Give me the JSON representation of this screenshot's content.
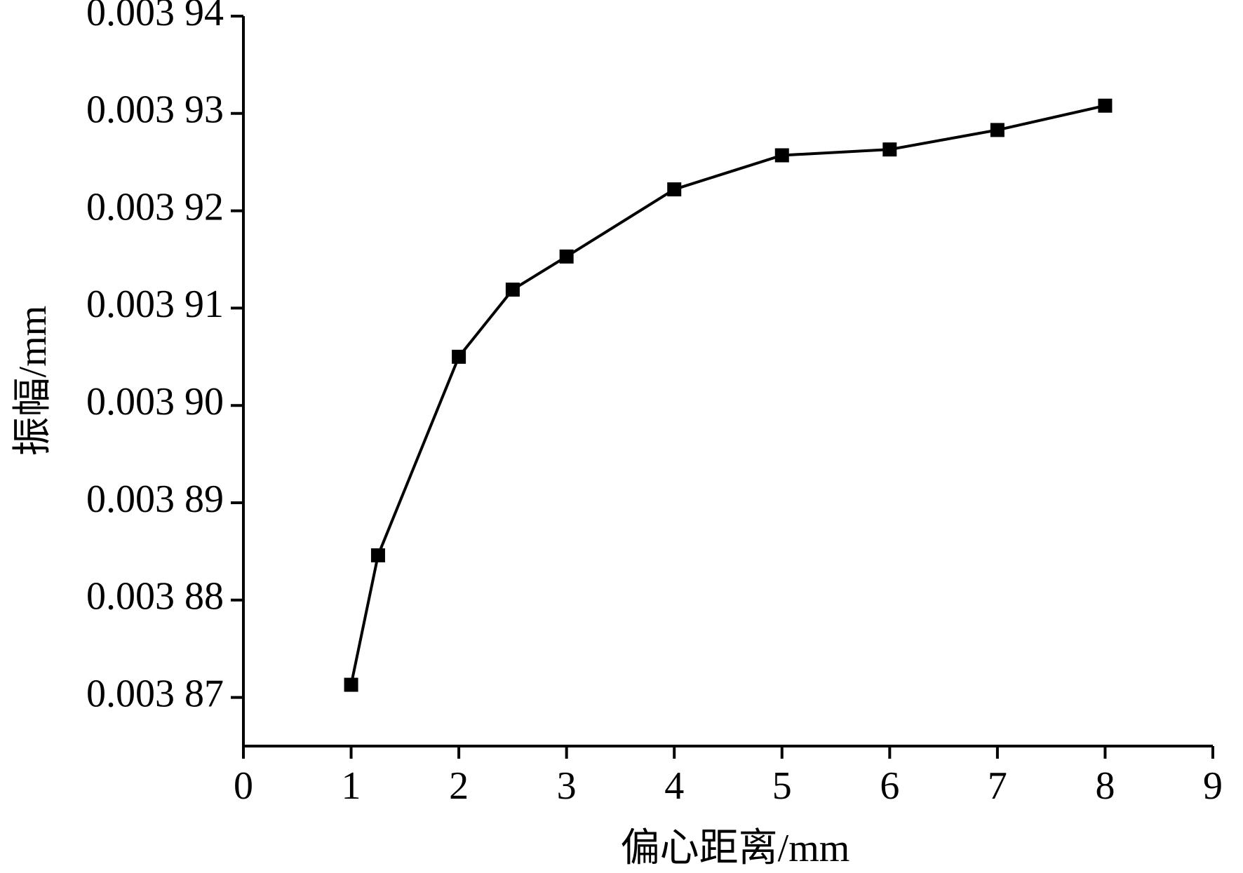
{
  "chart_data": {
    "type": "line",
    "x_label": "偏心距离/mm",
    "y_label": "振幅/mm",
    "x": [
      1,
      1.25,
      2,
      2.5,
      3,
      4,
      5,
      6,
      7,
      8
    ],
    "values": [
      0.0038713,
      0.0038846,
      0.003905,
      0.0039119,
      0.0039153,
      0.0039222,
      0.0039257,
      0.0039263,
      0.0039283,
      0.0039308
    ],
    "color": "#000000",
    "xlim": [
      0,
      9
    ],
    "xticks": [
      0,
      1,
      2,
      3,
      4,
      5,
      6,
      7,
      8,
      9
    ],
    "ylim": [
      0.003865,
      0.00394
    ],
    "yticks": [
      {
        "value": 0.00387,
        "label": "0.003 87"
      },
      {
        "value": 0.00388,
        "label": "0.003 88"
      },
      {
        "value": 0.00389,
        "label": "0.003 89"
      },
      {
        "value": 0.0039,
        "label": "0.003 90"
      },
      {
        "value": 0.00391,
        "label": "0.003 91"
      },
      {
        "value": 0.00392,
        "label": "0.003 92"
      },
      {
        "value": 0.00393,
        "label": "0.003 93"
      },
      {
        "value": 0.00394,
        "label": "0.003 94"
      }
    ],
    "grid": false
  }
}
